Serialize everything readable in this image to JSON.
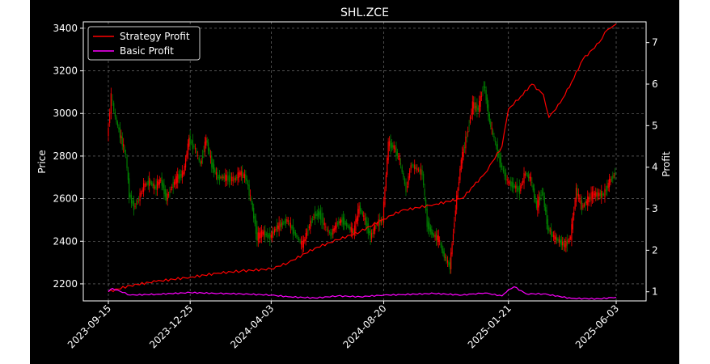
{
  "chart_data": {
    "type": "line",
    "title": "SHL.ZCE",
    "xlabel": "",
    "ylabel": "Price",
    "y2label": "Profit",
    "x_ticks": [
      "2023-09-15",
      "2023-12-25",
      "2024-04-03",
      "2024-08-20",
      "2025-01-21",
      "2025-06-03"
    ],
    "y_ticks": [
      2200,
      2400,
      2600,
      2800,
      3000,
      3200,
      3400
    ],
    "y2_ticks": [
      1,
      2,
      3,
      4,
      5,
      6,
      7
    ],
    "ylim": [
      2120,
      3430
    ],
    "y2lim": [
      0.78,
      7.5
    ],
    "grid": true,
    "legend_position": "top-left",
    "colors": {
      "up": "#ff0000",
      "down": "#008000",
      "strategy": "#ff0000",
      "basic": "#ff00ff",
      "grid": "#808080"
    },
    "price": {
      "dates": [
        "2023-09-15",
        "2023-09-20",
        "2023-09-25",
        "2023-10-08",
        "2023-10-12",
        "2023-10-18",
        "2023-10-24",
        "2023-10-30",
        "2023-11-06",
        "2023-11-13",
        "2023-11-20",
        "2023-11-27",
        "2023-12-04",
        "2023-12-11",
        "2023-12-18",
        "2023-12-25",
        "2024-01-02",
        "2024-01-08",
        "2024-01-15",
        "2024-01-22",
        "2024-01-29",
        "2024-02-05",
        "2024-02-19",
        "2024-02-26",
        "2024-03-04",
        "2024-03-11",
        "2024-03-18",
        "2024-03-25",
        "2024-04-03",
        "2024-04-10",
        "2024-04-17",
        "2024-04-24",
        "2024-05-06",
        "2024-05-13",
        "2024-05-20",
        "2024-05-27",
        "2024-06-03",
        "2024-06-11",
        "2024-06-17",
        "2024-06-24",
        "2024-07-01",
        "2024-07-08",
        "2024-07-15",
        "2024-07-22",
        "2024-07-29",
        "2024-08-05",
        "2024-08-12",
        "2024-08-20",
        "2024-08-27",
        "2024-09-03",
        "2024-09-10",
        "2024-09-18",
        "2024-09-24",
        "2024-10-08",
        "2024-10-14",
        "2024-10-21",
        "2024-10-28",
        "2024-11-04",
        "2024-11-11",
        "2024-11-18",
        "2024-11-25",
        "2024-12-02",
        "2024-12-09",
        "2024-12-16",
        "2024-12-23",
        "2024-12-30",
        "2025-01-06",
        "2025-01-13",
        "2025-01-21",
        "2025-02-05",
        "2025-02-12",
        "2025-02-19",
        "2025-02-26",
        "2025-03-05",
        "2025-03-12",
        "2025-03-19",
        "2025-03-26",
        "2025-04-02",
        "2025-04-09",
        "2025-04-16",
        "2025-04-23",
        "2025-05-06",
        "2025-05-13",
        "2025-05-20",
        "2025-05-27",
        "2025-06-03"
      ],
      "close": [
        2880,
        3080,
        2980,
        2800,
        2620,
        2560,
        2600,
        2660,
        2680,
        2650,
        2690,
        2600,
        2660,
        2700,
        2720,
        2880,
        2830,
        2760,
        2880,
        2760,
        2700,
        2700,
        2690,
        2720,
        2700,
        2580,
        2420,
        2440,
        2420,
        2460,
        2480,
        2500,
        2420,
        2380,
        2460,
        2520,
        2530,
        2460,
        2430,
        2480,
        2500,
        2470,
        2440,
        2560,
        2500,
        2420,
        2480,
        2500,
        2860,
        2840,
        2780,
        2640,
        2760,
        2720,
        2480,
        2430,
        2410,
        2330,
        2280,
        2560,
        2780,
        2900,
        3040,
        3020,
        3140,
        2960,
        2860,
        2760,
        2680,
        2640,
        2720,
        2690,
        2560,
        2640,
        2460,
        2420,
        2400,
        2380,
        2420,
        2640,
        2560,
        2620,
        2620,
        2620,
        2680,
        2720
      ]
    },
    "series": [
      {
        "name": "Strategy Profit",
        "x": [
          "2023-09-15",
          "2023-10-12",
          "2023-11-13",
          "2023-12-25",
          "2024-01-29",
          "2024-02-26",
          "2024-04-03",
          "2024-04-24",
          "2024-05-27",
          "2024-06-24",
          "2024-07-22",
          "2024-08-20",
          "2024-09-10",
          "2024-10-21",
          "2024-11-25",
          "2024-12-09",
          "2024-12-23",
          "2025-01-13",
          "2025-01-21",
          "2025-02-05",
          "2025-02-19",
          "2025-03-05",
          "2025-03-12",
          "2025-03-26",
          "2025-04-09",
          "2025-04-23",
          "2025-05-13",
          "2025-05-20",
          "2025-05-27",
          "2025-06-03"
        ],
        "values": [
          1.0,
          1.15,
          1.25,
          1.35,
          1.45,
          1.5,
          1.55,
          1.7,
          2.05,
          2.25,
          2.45,
          2.75,
          2.95,
          3.1,
          3.25,
          3.55,
          3.85,
          4.5,
          5.4,
          5.7,
          6.0,
          5.75,
          5.2,
          5.55,
          6.05,
          6.6,
          7.0,
          7.25,
          7.35,
          7.45
        ]
      },
      {
        "name": "Basic Profit",
        "x": [
          "2023-09-15",
          "2023-09-20",
          "2023-10-12",
          "2023-11-13",
          "2023-12-25",
          "2024-01-29",
          "2024-02-26",
          "2024-04-03",
          "2024-04-24",
          "2024-05-27",
          "2024-06-24",
          "2024-07-22",
          "2024-08-20",
          "2024-09-10",
          "2024-10-21",
          "2024-11-25",
          "2024-12-09",
          "2024-12-23",
          "2025-01-13",
          "2025-01-21",
          "2025-01-28",
          "2025-02-12",
          "2025-03-05",
          "2025-04-09",
          "2025-05-13",
          "2025-06-03"
        ],
        "values": [
          1.0,
          1.08,
          0.92,
          0.94,
          0.98,
          0.96,
          0.95,
          0.92,
          0.88,
          0.85,
          0.9,
          0.88,
          0.92,
          0.93,
          0.96,
          0.92,
          0.95,
          0.97,
          0.9,
          1.05,
          1.12,
          0.95,
          0.95,
          0.84,
          0.83,
          0.87
        ]
      }
    ]
  }
}
